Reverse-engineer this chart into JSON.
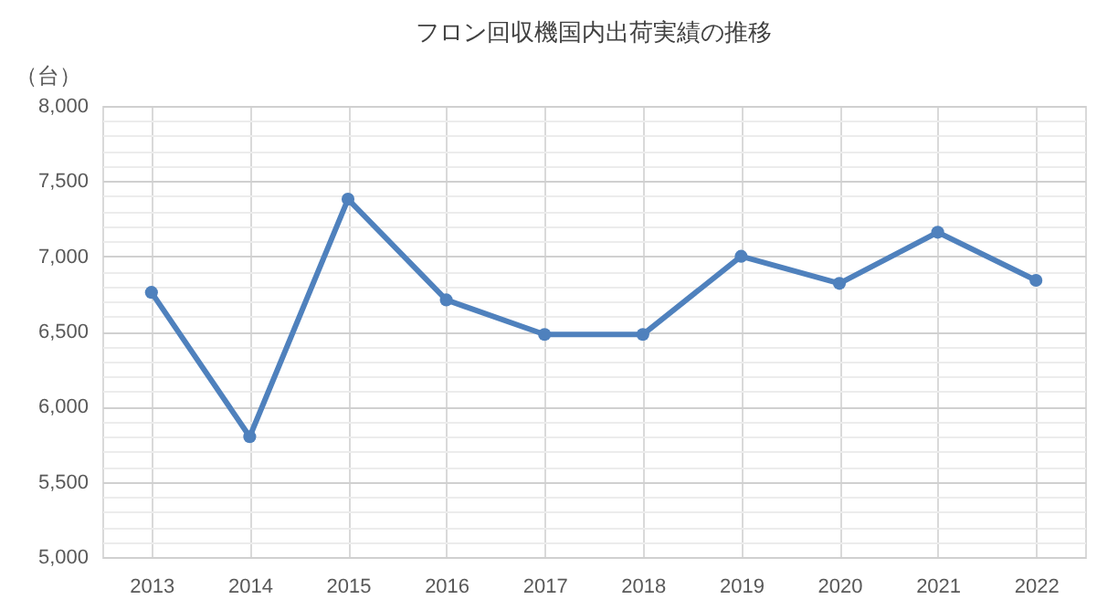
{
  "chart_data": {
    "type": "line",
    "title": "フロン回収機国内出荷実績の推移",
    "ylabel": "（台）",
    "categories": [
      "2013",
      "2014",
      "2015",
      "2016",
      "2017",
      "2018",
      "2019",
      "2020",
      "2021",
      "2022"
    ],
    "series": [
      {
        "color": "#4f81bd",
        "values": [
          6760,
          5800,
          7380,
          6710,
          6480,
          6480,
          7000,
          6820,
          7160,
          6840
        ]
      }
    ],
    "ylim": [
      5000,
      8000
    ],
    "yticks": [
      {
        "value": 5000,
        "label": "5,000"
      },
      {
        "value": 5100,
        "label": null
      },
      {
        "value": 5200,
        "label": null
      },
      {
        "value": 5300,
        "label": null
      },
      {
        "value": 5400,
        "label": null
      },
      {
        "value": 5500,
        "label": "5,500"
      },
      {
        "value": 5600,
        "label": null
      },
      {
        "value": 5700,
        "label": null
      },
      {
        "value": 5800,
        "label": null
      },
      {
        "value": 5900,
        "label": null
      },
      {
        "value": 6000,
        "label": "6,000"
      },
      {
        "value": 6100,
        "label": null
      },
      {
        "value": 6200,
        "label": null
      },
      {
        "value": 6300,
        "label": null
      },
      {
        "value": 6400,
        "label": null
      },
      {
        "value": 6500,
        "label": "6,500"
      },
      {
        "value": 6600,
        "label": null
      },
      {
        "value": 6700,
        "label": null
      },
      {
        "value": 6800,
        "label": null
      },
      {
        "value": 6900,
        "label": null
      },
      {
        "value": 7000,
        "label": "7,000"
      },
      {
        "value": 7100,
        "label": null
      },
      {
        "value": 7200,
        "label": null
      },
      {
        "value": 7300,
        "label": null
      },
      {
        "value": 7400,
        "label": null
      },
      {
        "value": 7500,
        "label": "7,500"
      },
      {
        "value": 7600,
        "label": null
      },
      {
        "value": 7700,
        "label": null
      },
      {
        "value": 7800,
        "label": null
      },
      {
        "value": 7900,
        "label": null
      },
      {
        "value": 8000,
        "label": "8,000"
      }
    ],
    "grid": true,
    "marker": "circle",
    "line_style": "solid"
  }
}
